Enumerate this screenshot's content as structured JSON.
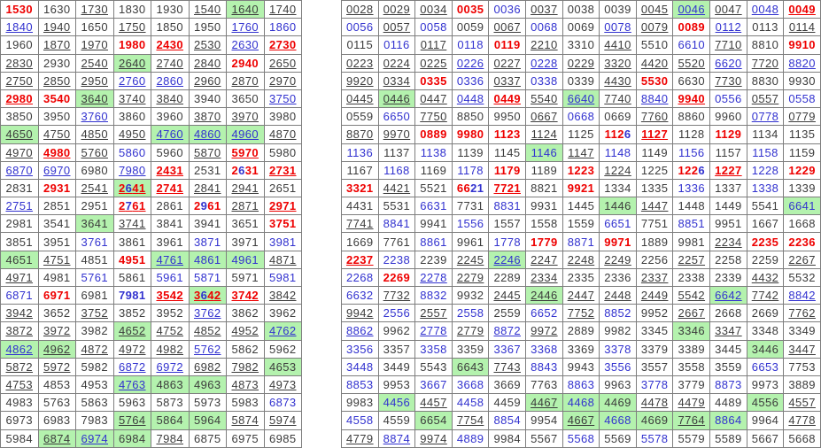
{
  "meta": {
    "description": "Two dense grids of 4-digit lottery-style numbers; flags per cell: k=black text, b=blue text, r=red bold text, u=underlined (link), g=green highlighted background, B=bold; ':xxxx' suffix gives per-digit colors (r/b/k)",
    "colors": {
      "black_text": "#3c3c3c",
      "blue_text": "#3232cf",
      "red_text": "#ee0000",
      "green_highlight": "#b4f2ae",
      "grid_border": "#7e7e7e",
      "cell_background": "#ffffff"
    }
  },
  "left_table": {
    "columns": 8,
    "rows": [
      [
        "1530 r",
        "1630 k",
        "1730 ku",
        "1830 k",
        "1930 k",
        "1540 ku",
        "1640 kug",
        "1740 ku"
      ],
      [
        "1840 bu",
        "1940 ku",
        "1650 k",
        "1750 ku",
        "1850 k",
        "1950 k",
        "1760 bu",
        "1860 b"
      ],
      [
        "1960 k",
        "1870 ku",
        "1970 ku",
        "1980 r",
        "2430 ru",
        "2530 ku",
        "2630 bu",
        "2730 ru"
      ],
      [
        "2830 ku",
        "2930 k",
        "2540 ku",
        "2640 kug",
        "2740 ku",
        "2840 ku",
        "2940 r",
        "2650 ku"
      ],
      [
        "2750 ku",
        "2850 ku",
        "2950 ku",
        "2760 bu",
        "2860 bu",
        "2960 ku",
        "2870 ku",
        "2970 ku"
      ],
      [
        "2980 ru",
        "3540 r",
        "3640 kug",
        "3740 ku",
        "3840 ku",
        "3940 k",
        "3650 k",
        "3750 bu"
      ],
      [
        "3850 k",
        "3950 k",
        "3760 bu",
        "3860 k",
        "3960 k",
        "3870 ku",
        "3970 ku",
        "3980 k"
      ],
      [
        "4650 kug",
        "4750 ku",
        "4850 ku",
        "4950 ku",
        "4760 bug",
        "4860 bug",
        "4960 bug",
        "4870 ku"
      ],
      [
        "4970 ku",
        "4980 ru",
        "5760 ku",
        "5860 b",
        "5960 k",
        "5870 ku",
        "5970 ru",
        "5980 k"
      ],
      [
        "6870 bu",
        "6970 bu",
        "6980 k",
        "7980 bu",
        "2431 ru",
        "2531 k",
        "2631 r:rbrr",
        "2731 ru"
      ],
      [
        "2831 k",
        "2931 r",
        "2541 ku",
        "2641 rug:rbrr",
        "2741 ru",
        "2841 ku",
        "2941 ku",
        "2651 k"
      ],
      [
        "2751 bu",
        "2851 k",
        "2951 k",
        "2761 ru:rbrr",
        "2861 k",
        "2961 r:rbrr",
        "2871 ku",
        "2971 ru"
      ],
      [
        "2981 k",
        "3541 k",
        "3641 kg",
        "3741 ku",
        "3841 k",
        "3941 k",
        "3651 k",
        "3751 r"
      ],
      [
        "3851 k",
        "3951 k",
        "3761 b",
        "3861 k",
        "3961 k",
        "3871 b",
        "3971 k",
        "3981 b"
      ],
      [
        "4651 kg",
        "4751 ku",
        "4851 k",
        "4951 r",
        "4761 bug",
        "4861 bg",
        "4961 bg",
        "4871 ku"
      ],
      [
        "4971 ku",
        "4981 k",
        "5761 b",
        "5861 k",
        "5961 b",
        "5871 b",
        "5971 k",
        "5981 b"
      ],
      [
        "6871 b",
        "6971 r",
        "6981 k",
        "7981 bB",
        "3542 ru",
        "3642 rug:rbrr",
        "3742 ru",
        "3842 ku"
      ],
      [
        "3942 ku",
        "3652 k",
        "3752 ku",
        "3852 k",
        "3952 k",
        "3762 bu",
        "3862 k",
        "3962 k"
      ],
      [
        "3872 ku",
        "3972 ku",
        "3982 k",
        "4652 kug",
        "4752 ku",
        "4852 ku",
        "4952 ku",
        "4762 bug"
      ],
      [
        "4862 bug",
        "4962 kug",
        "4872 ku",
        "4972 ku",
        "4982 ku",
        "5762 bu",
        "5862 k",
        "5962 k"
      ],
      [
        "5872 ku",
        "5972 ku",
        "5982 k",
        "6872 bu",
        "6972 bu",
        "6982 ku",
        "7982 ku",
        "4653 kg"
      ],
      [
        "4753 ku",
        "4853 k",
        "4953 k",
        "4763 bug",
        "4863 kg",
        "4963 kg",
        "4873 ku",
        "4973 ku"
      ],
      [
        "4983 k",
        "5763 k",
        "5863 k",
        "5963 k",
        "5873 k",
        "5973 k",
        "5983 k",
        "6873 b"
      ],
      [
        "6973 k",
        "6983 k",
        "7983 k",
        "5764 kug",
        "5864 kg",
        "5964 kg",
        "5874 ku",
        "5974 ku"
      ],
      [
        "5984 k",
        "6874 kug",
        "6974 bug",
        "6984 kg",
        "7984 ku",
        "6875 k",
        "6975 k",
        "6985 k"
      ]
    ]
  },
  "right_table": {
    "columns": 13,
    "rows": [
      [
        "0028 ku",
        "0029 ku",
        "0034 ku",
        "0035 r",
        "0036 b",
        "0037 ku",
        "0038 k",
        "0039 k",
        "0045 ku",
        "0046 bug",
        "0047 ku",
        "0048 bu",
        "0049 ru"
      ],
      [
        "0056 b",
        "0057 ku",
        "0058 b",
        "0059 k",
        "0067 ku",
        "0068 b",
        "0069 k",
        "0078 bu",
        "0079 ku",
        "0089 r",
        "0112 bu",
        "0113 k",
        "0114 ku"
      ],
      [
        "0115 k",
        "0116 b",
        "0117 ku",
        "0118 b",
        "0119 r",
        "2210 ku",
        "3310 k",
        "4410 ku",
        "5510 k",
        "6610 b",
        "7710 ku",
        "8810 k",
        "9910 r"
      ],
      [
        "0223 ku",
        "0224 ku",
        "0225 ku",
        "0226 bu",
        "0227 ku",
        "0228 bu",
        "0229 ku",
        "3320 ku",
        "4420 ku",
        "5520 ku",
        "6620 bu",
        "7720 ku",
        "8820 bu"
      ],
      [
        "9920 ku",
        "0334 ku",
        "0335 r",
        "0336 b",
        "0337 ku",
        "0338 b",
        "0339 k",
        "4430 ku",
        "5530 r",
        "6630 k",
        "7730 ku",
        "8830 k",
        "9930 k"
      ],
      [
        "0445 ku",
        "0446 kug",
        "0447 ku",
        "0448 bu",
        "0449 ru",
        "5540 ku",
        "6640 bug",
        "7740 ku",
        "8840 bu",
        "9940 ru",
        "0556 b",
        "0557 ku",
        "0558 b"
      ],
      [
        "0559 k",
        "6650 b",
        "7750 ku",
        "8850 k",
        "9950 k",
        "0667 ku",
        "0668 b",
        "0669 k",
        "7760 ku",
        "8860 k",
        "9960 k",
        "0778 bu",
        "0779 ku"
      ],
      [
        "8870 ku",
        "9970 ku",
        "0889 r",
        "9980 r",
        "1123 r",
        "1124 ku",
        "1125 k",
        "1126 r:rrrb",
        "1127 ru",
        "1128 k",
        "1129 r",
        "1134 k",
        "1135 k"
      ],
      [
        "1136 b",
        "1137 k",
        "1138 b",
        "1139 k",
        "1145 k",
        "1146 bg",
        "1147 ku",
        "1148 b",
        "1149 k",
        "1156 b",
        "1157 k",
        "1158 b",
        "1159 k"
      ],
      [
        "1167 k",
        "1168 b",
        "1169 k",
        "1178 b",
        "1179 r",
        "1189 k",
        "1223 r",
        "1224 ku",
        "1225 k",
        "1226 r:rrrb",
        "1227 ru",
        "1228 b",
        "1229 r"
      ],
      [
        "3321 r",
        "4421 ku",
        "5521 k",
        "6621 r:rrbb",
        "7721 ru",
        "8821 k",
        "9921 r",
        "1334 k",
        "1335 k",
        "1336 b",
        "1337 k",
        "1338 b",
        "1339 k"
      ],
      [
        "4431 k",
        "5531 k",
        "6631 b",
        "7731 k",
        "8831 b",
        "9931 k",
        "1445 k",
        "1446 kg",
        "1447 ku",
        "1448 k",
        "1449 k",
        "5541 k",
        "6641 bg"
      ],
      [
        "7741 ku",
        "8841 b",
        "9941 k",
        "1556 b",
        "1557 k",
        "1558 k",
        "1559 k",
        "6651 b",
        "7751 k",
        "8851 b",
        "9951 k",
        "1667 k",
        "1668 k"
      ],
      [
        "1669 k",
        "7761 k",
        "8861 b",
        "9961 k",
        "1778 b",
        "1779 r",
        "8871 b",
        "9971 r",
        "1889 k",
        "9981 k",
        "2234 ku",
        "2235 r",
        "2236 r"
      ],
      [
        "2237 ru",
        "2238 b",
        "2239 k",
        "2245 ku",
        "2246 bug",
        "2247 ku",
        "2248 ku",
        "2249 ku",
        "2256 k",
        "2257 ku",
        "2258 k",
        "2259 k",
        "2267 ku"
      ],
      [
        "2268 b",
        "2269 r",
        "2278 bu",
        "2279 ku",
        "2289 k",
        "2334 ku",
        "2335 k",
        "2336 k",
        "2337 ku",
        "2338 k",
        "2339 k",
        "4432 ku",
        "5532 k"
      ],
      [
        "6632 b",
        "7732 ku",
        "8832 b",
        "9932 k",
        "2445 ku",
        "2446 kug",
        "2447 ku",
        "2448 ku",
        "2449 ku",
        "5542 ku",
        "6642 bug",
        "7742 ku",
        "8842 bu"
      ],
      [
        "9942 ku",
        "2556 b",
        "2557 ku",
        "2558 b",
        "2559 k",
        "6652 b",
        "7752 ku",
        "8852 b",
        "9952 k",
        "2667 ku",
        "2668 k",
        "2669 k",
        "7762 ku"
      ],
      [
        "8862 bu",
        "9962 k",
        "2778 bu",
        "2779 ku",
        "8872 bu",
        "9972 ku",
        "2889 k",
        "9982 k",
        "3345 k",
        "3346 kg",
        "3347 ku",
        "3348 k",
        "3349 k"
      ],
      [
        "3356 b",
        "3357 k",
        "3358 b",
        "3359 k",
        "3367 b",
        "3368 b",
        "3369 k",
        "3378 b",
        "3379 k",
        "3389 k",
        "3445 k",
        "3446 kg",
        "3447 ku"
      ],
      [
        "3448 b",
        "3449 k",
        "5543 k",
        "6643 kg",
        "7743 ku",
        "8843 b",
        "9943 k",
        "3556 b",
        "3557 k",
        "3558 k",
        "3559 k",
        "6653 b",
        "7753 k"
      ],
      [
        "8853 b",
        "9953 k",
        "3667 b",
        "3668 b",
        "3669 k",
        "7763 k",
        "8863 b",
        "9963 k",
        "3778 b",
        "3779 k",
        "8873 b",
        "9973 k",
        "3889 k"
      ],
      [
        "9983 k",
        "4456 bg",
        "4457 ku",
        "4458 b",
        "4459 k",
        "4467 kug",
        "4468 bg",
        "4469 kg",
        "4478 ku",
        "4479 ku",
        "4489 k",
        "4556 kg",
        "4557 ku"
      ],
      [
        "4558 b",
        "4559 k",
        "6654 kg",
        "7754 ku",
        "8854 b",
        "9954 k",
        "4667 kug",
        "4668 bg",
        "4669 kg",
        "7764 kug",
        "8864 bg",
        "9964 k",
        "4778 ku"
      ],
      [
        "4779 ku",
        "8874 bu",
        "9974 ku",
        "4889 b",
        "9984 k",
        "5567 k",
        "5568 b",
        "5569 k",
        "5578 b",
        "5579 k",
        "5589 k",
        "5667 k",
        "5668 k"
      ]
    ]
  }
}
